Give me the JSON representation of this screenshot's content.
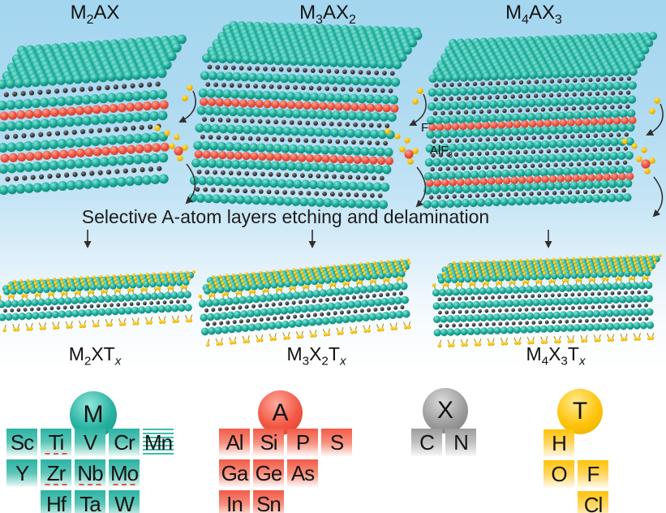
{
  "caption": "Selective A-atom layers etching and delamination",
  "palette": {
    "m_teal": "#1aa795",
    "x_dark": "#2b2b2b",
    "a_red": "#ee5a48",
    "t_yellow": "#f5bb00",
    "arrow": "#2f2f2f",
    "cell_m": "#2bb3a3",
    "cell_a": "#f35a48",
    "cell_x": "#9d9d9d",
    "cell_t": "#ffc30a",
    "underline_red": "#e0584a",
    "bg_top_blue": "#a4d6ef"
  },
  "structures": [
    {
      "name": "M2AX",
      "label_segs": [
        {
          "t": "M"
        },
        {
          "t": "2",
          "s": "sub"
        },
        {
          "t": "AX"
        }
      ],
      "layers": [
        "M",
        "X",
        "M",
        "A",
        "M",
        "X",
        "M",
        "A",
        "M",
        "X",
        "M"
      ]
    },
    {
      "name": "M3AX2",
      "label_segs": [
        {
          "t": "M"
        },
        {
          "t": "3",
          "s": "sub"
        },
        {
          "t": "AX"
        },
        {
          "t": "2",
          "s": "sub"
        }
      ],
      "layers": [
        "M",
        "X",
        "M",
        "X",
        "M",
        "A",
        "M",
        "X",
        "M",
        "X",
        "M",
        "A",
        "M",
        "X",
        "M",
        "X",
        "M"
      ]
    },
    {
      "name": "M4AX3",
      "label_segs": [
        {
          "t": "M"
        },
        {
          "t": "4",
          "s": "sub"
        },
        {
          "t": "AX"
        },
        {
          "t": "3",
          "s": "sub"
        }
      ],
      "layers": [
        "M",
        "X",
        "M",
        "X",
        "M",
        "X",
        "M",
        "A",
        "M",
        "X",
        "M",
        "X",
        "M",
        "X",
        "M",
        "A",
        "M",
        "X",
        "M"
      ]
    }
  ],
  "sheets": [
    {
      "name": "M2XTx",
      "label_segs": [
        {
          "t": "M"
        },
        {
          "t": "2",
          "s": "sub"
        },
        {
          "t": "XT"
        },
        {
          "t": "x",
          "s": "subi"
        }
      ],
      "layers": [
        "T",
        "M",
        "X",
        "M",
        "T"
      ]
    },
    {
      "name": "M3X2Tx",
      "label_segs": [
        {
          "t": "M"
        },
        {
          "t": "3",
          "s": "sub"
        },
        {
          "t": "X"
        },
        {
          "t": "2",
          "s": "sub"
        },
        {
          "t": "T"
        },
        {
          "t": "x",
          "s": "subi"
        }
      ],
      "layers": [
        "T",
        "M",
        "X",
        "M",
        "X",
        "M",
        "T"
      ]
    },
    {
      "name": "M4X3Tx",
      "label_segs": [
        {
          "t": "M"
        },
        {
          "t": "4",
          "s": "sub"
        },
        {
          "t": "X"
        },
        {
          "t": "3",
          "s": "sub"
        },
        {
          "t": "T"
        },
        {
          "t": "x",
          "s": "subi"
        }
      ],
      "layers": [
        "T",
        "M",
        "X",
        "M",
        "X",
        "M",
        "X",
        "M",
        "T"
      ]
    }
  ],
  "etch_labels": {
    "fluoride_segs": [
      {
        "t": "F"
      },
      {
        "t": "−",
        "s": "sup"
      }
    ],
    "alf3_segs": [
      {
        "t": "AlF"
      },
      {
        "t": "3",
        "s": "sub"
      }
    ]
  },
  "element_groups": [
    {
      "key": "M",
      "badge_label": "M",
      "cells": [
        {
          "sym": "Sc",
          "col": 0,
          "row": 0
        },
        {
          "sym": "Ti",
          "col": 1,
          "row": 0,
          "underline": true
        },
        {
          "sym": "V",
          "col": 2,
          "row": 0
        },
        {
          "sym": "Cr",
          "col": 3,
          "row": 0
        },
        {
          "sym": "Mn",
          "col": 4,
          "row": 0,
          "striped": true
        },
        {
          "sym": "Y",
          "col": 0,
          "row": 1
        },
        {
          "sym": "Zr",
          "col": 1,
          "row": 1,
          "underline": true
        },
        {
          "sym": "Nb",
          "col": 2,
          "row": 1,
          "underline": true
        },
        {
          "sym": "Mo",
          "col": 3,
          "row": 1,
          "underline": true
        },
        {
          "sym": "Hf",
          "col": 1,
          "row": 2,
          "underline": true
        },
        {
          "sym": "Ta",
          "col": 2,
          "row": 2,
          "underline": true
        },
        {
          "sym": "W",
          "col": 3,
          "row": 2
        }
      ]
    },
    {
      "key": "A",
      "badge_label": "A",
      "cells": [
        {
          "sym": "Al",
          "col": 0,
          "row": 0
        },
        {
          "sym": "Si",
          "col": 1,
          "row": 0
        },
        {
          "sym": "P",
          "col": 2,
          "row": 0
        },
        {
          "sym": "S",
          "col": 3,
          "row": 0
        },
        {
          "sym": "Ga",
          "col": 0,
          "row": 1
        },
        {
          "sym": "Ge",
          "col": 1,
          "row": 1
        },
        {
          "sym": "As",
          "col": 2,
          "row": 1
        },
        {
          "sym": "In",
          "col": 0,
          "row": 2
        },
        {
          "sym": "Sn",
          "col": 1,
          "row": 2
        }
      ]
    },
    {
      "key": "X",
      "badge_label": "X",
      "cells": [
        {
          "sym": "C",
          "col": 0,
          "row": 0
        },
        {
          "sym": "N",
          "col": 1,
          "row": 0
        }
      ]
    },
    {
      "key": "T",
      "badge_label": "T",
      "cells": [
        {
          "sym": "H",
          "col": 0,
          "row": 0
        },
        {
          "sym": "O",
          "col": 0,
          "row": 1
        },
        {
          "sym": "F",
          "col": 1,
          "row": 1
        },
        {
          "sym": "Cl",
          "col": 1,
          "row": 2
        }
      ]
    }
  ]
}
